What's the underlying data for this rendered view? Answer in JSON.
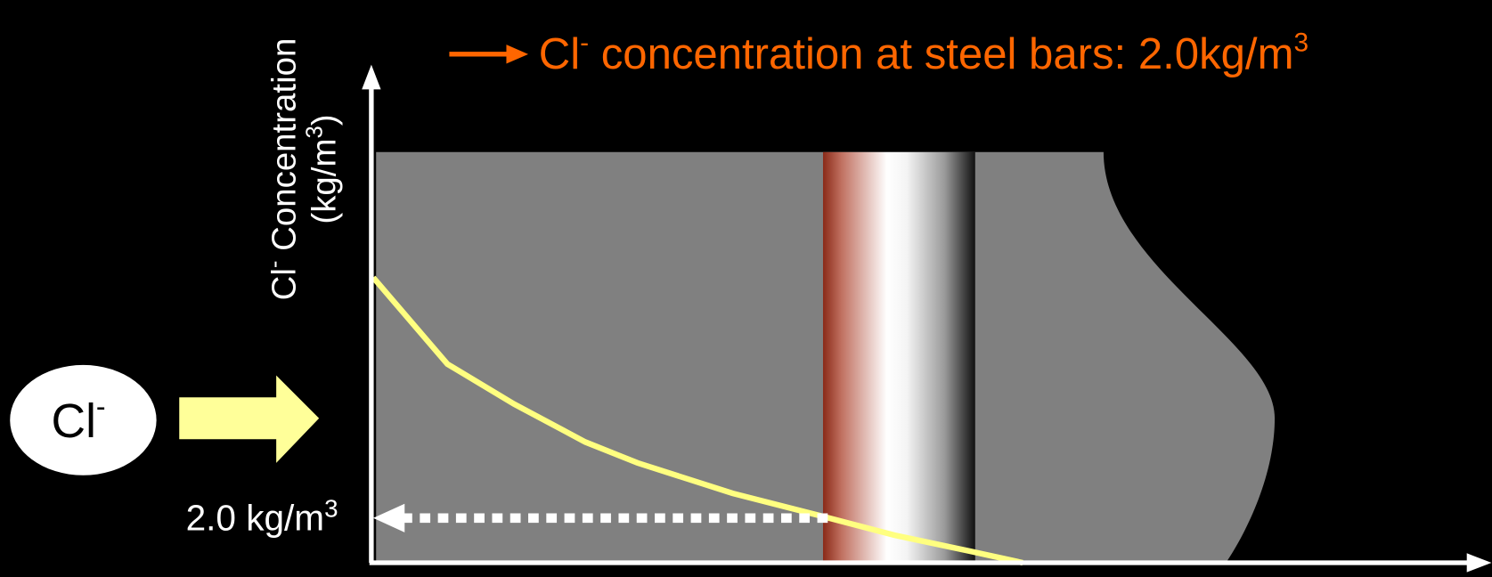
{
  "title": {
    "base": "Cl",
    "sup": "-",
    "rest": " concentration at steel bars: 2.0kg/m",
    "sup2": "3"
  },
  "y_axis_label": {
    "line1_base": "Cl",
    "line1_sup": "-",
    "line1_rest": " Concentration",
    "line2_base": "(kg/m",
    "line2_sup": "3",
    "line2_rest": ")"
  },
  "ion_label": {
    "base": "Cl",
    "sup": "-"
  },
  "level_label": {
    "base": "2.0 kg/m",
    "sup": "3"
  }
}
